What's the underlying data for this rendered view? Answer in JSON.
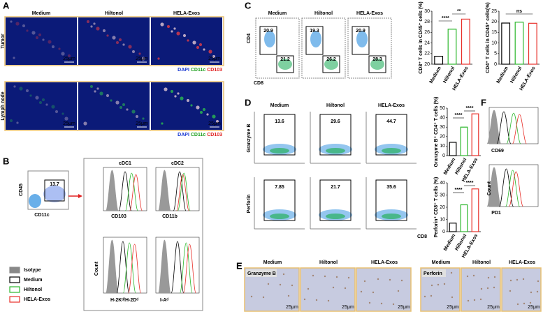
{
  "panels": {
    "A": {
      "label": "A",
      "columns": [
        "Medium",
        "Hiltonol",
        "HELA-Exos"
      ],
      "rows": [
        "Tumor",
        "Lymph node"
      ],
      "scale": "25μm",
      "stains": [
        "DAPI",
        "CD11c",
        "CD103"
      ]
    },
    "B": {
      "label": "B",
      "gate": 13.7,
      "y_axis": "CD45",
      "x_axis": "CD11c",
      "subsets": [
        "cDC1",
        "cDC2"
      ],
      "markers": [
        "CD103",
        "CD11b",
        "H-2Kᵈ/H-2Dᵈ",
        "I-Aᵈ"
      ],
      "count": "Count",
      "legend": [
        "Isotype",
        "Medium",
        "Hiltonol",
        "HELA-Exos"
      ]
    },
    "C": {
      "label": "C",
      "columns": [
        "Medium",
        "Hiltonol",
        "HELA-Exos"
      ],
      "y_axis": "CD4",
      "x_axis": "CD8",
      "gates": [
        [
          20.9,
          21.2
        ],
        [
          19.3,
          26.2
        ],
        [
          20.9,
          28.3
        ]
      ]
    },
    "D": {
      "label": "D",
      "columns": [
        "Medium",
        "Hiltonol",
        "HELA-Exos"
      ],
      "rows": [
        "Granzyme B",
        "Perforin"
      ],
      "x_axis": "CD8",
      "gates": [
        [
          13.6,
          29.6,
          44.7
        ],
        [
          7.85,
          21.7,
          35.6
        ]
      ]
    },
    "E": {
      "label": "E",
      "columns": [
        "Medium",
        "Hiltonol",
        "HELA-Exos"
      ],
      "groups": [
        "Granzyme B",
        "Perforin"
      ],
      "scale": "25μm"
    },
    "F": {
      "label": "F",
      "markers": [
        "CD69",
        "PD1"
      ],
      "count": "Count"
    }
  },
  "chart_data": [
    {
      "type": "bar",
      "ylabel": "CD8⁺ T cells in CD45⁺ cells (%)",
      "categories": [
        "Medium",
        "Hiltonol",
        "HELA-Exos"
      ],
      "values": [
        21.5,
        26.6,
        28.5
      ],
      "colors": [
        "#000000",
        "#2db82d",
        "#e8302a"
      ],
      "ylim": [
        20,
        30
      ],
      "yticks": [
        20,
        22,
        24,
        26,
        28,
        30
      ],
      "annotations": [
        "****",
        "**"
      ]
    },
    {
      "type": "bar",
      "ylabel": "CD4⁺ T cells in CD45⁺ cells(%)",
      "categories": [
        "Medium",
        "Hiltonol",
        "HELA-Exos"
      ],
      "values": [
        19.4,
        19.8,
        19.3
      ],
      "colors": [
        "#000000",
        "#2db82d",
        "#e8302a"
      ],
      "ylim": [
        0,
        25
      ],
      "yticks": [
        0,
        5,
        10,
        15,
        20,
        25
      ],
      "annotations": [
        "ns"
      ]
    },
    {
      "type": "bar",
      "ylabel": "Granzyme B⁺ CD4⁺ T cells (%)",
      "categories": [
        "Medium",
        "Hiltonol",
        "HELA-Exos"
      ],
      "values": [
        14,
        30,
        44
      ],
      "colors": [
        "#000000",
        "#2db82d",
        "#e8302a"
      ],
      "ylim": [
        0,
        50
      ],
      "yticks": [
        0,
        10,
        20,
        30,
        40,
        50
      ],
      "annotations": [
        "****",
        "****"
      ]
    },
    {
      "type": "bar",
      "ylabel": "Perforin⁺ CD8⁺ T cells (%)",
      "categories": [
        "Medium",
        "Hiltonol",
        "HELA-Exos"
      ],
      "values": [
        7,
        22,
        35
      ],
      "colors": [
        "#000000",
        "#2db82d",
        "#e8302a"
      ],
      "ylim": [
        0,
        40
      ],
      "yticks": [
        0,
        10,
        20,
        30,
        40
      ],
      "annotations": [
        "****",
        "****"
      ]
    }
  ]
}
